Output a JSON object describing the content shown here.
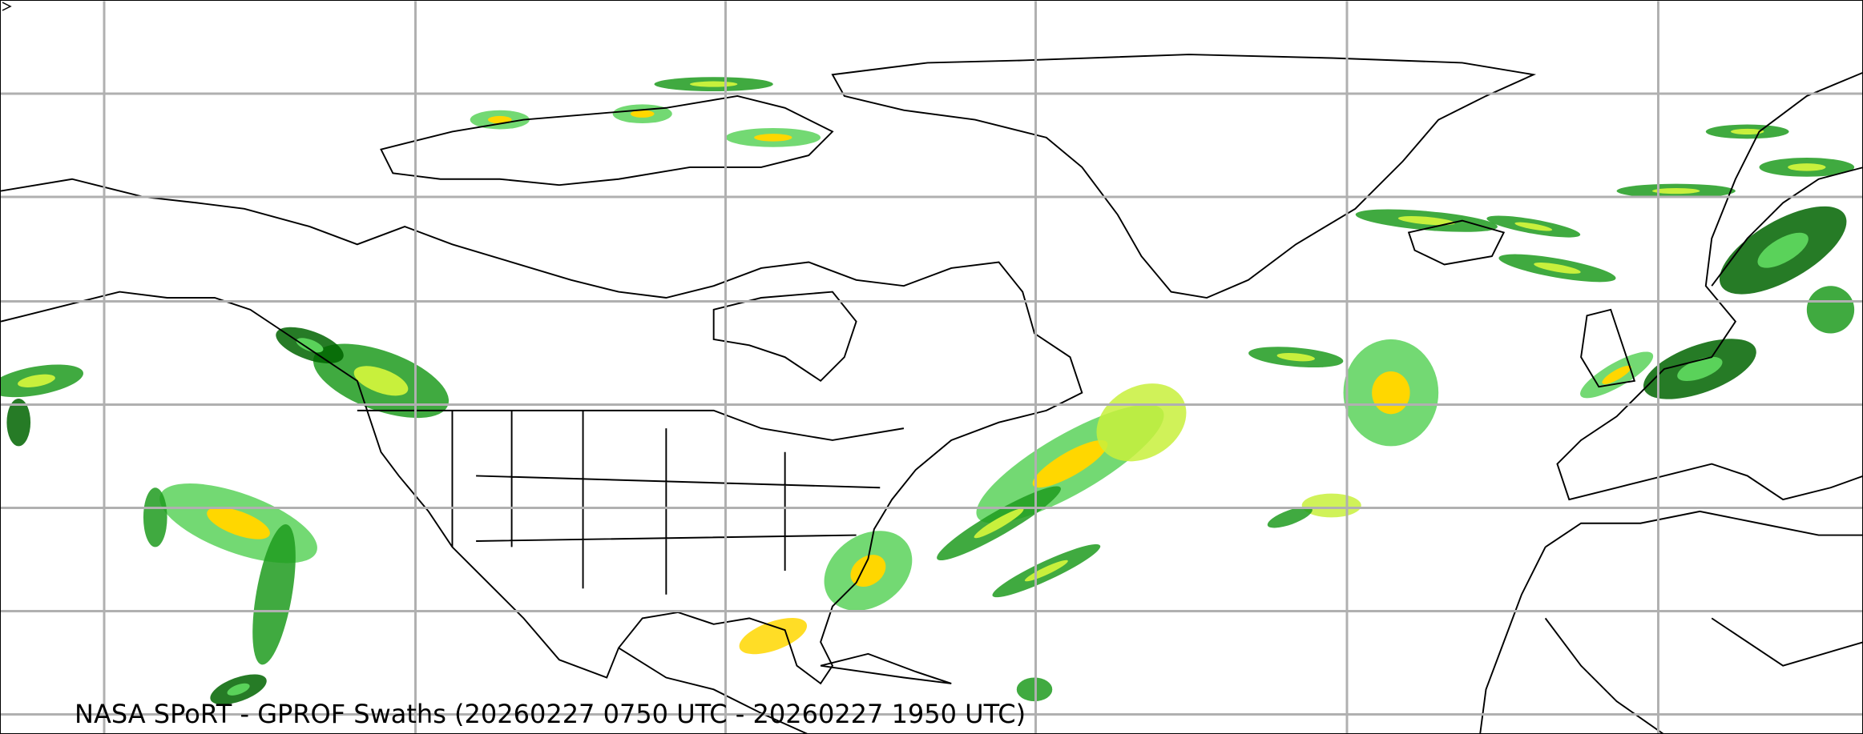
{
  "map": {
    "caption": "NASA SPoRT - GPROF Swaths (20260227 0750 UTC - 20260227 1950 UTC)",
    "background_color": "#ffffff",
    "gridline_color": "#b0b0b0",
    "coastline_color": "#000000",
    "precip_colors": [
      "#006400",
      "#1e9b1e",
      "#5ad25a",
      "#c8f03c",
      "#ffd700",
      "#ff8c00",
      "#e60000"
    ]
  }
}
